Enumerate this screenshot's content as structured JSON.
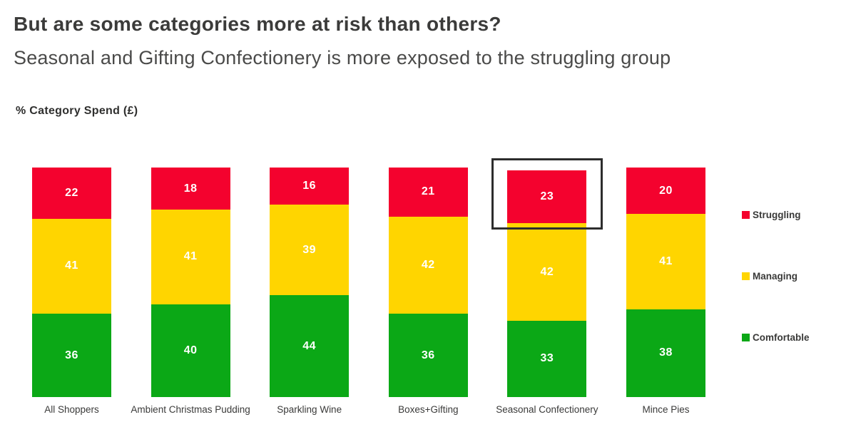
{
  "header": {
    "title": "But are some categories more at risk than others?",
    "subtitle": "Seasonal and Gifting Confectionery is more exposed to the struggling group"
  },
  "axis": {
    "y_label": "% Category Spend (£)"
  },
  "chart_data": {
    "type": "bar",
    "stacked": true,
    "title": "% Category Spend (£)",
    "xlabel": "",
    "ylabel": "% Category Spend (£)",
    "grid": false,
    "legend_position": "right",
    "categories": [
      "All Shoppers",
      "Ambient Christmas Pudding",
      "Sparkling Wine",
      "Boxes+Gifting",
      "Seasonal Confectionery",
      "Mince Pies"
    ],
    "series": [
      {
        "name": "Struggling",
        "color": "#F4022E",
        "values": [
          22,
          18,
          16,
          21,
          23,
          20
        ]
      },
      {
        "name": "Managing",
        "color": "#FFD500",
        "values": [
          41,
          41,
          39,
          42,
          42,
          41
        ]
      },
      {
        "name": "Comfortable",
        "color": "#0BA816",
        "values": [
          36,
          40,
          44,
          36,
          33,
          38
        ]
      }
    ],
    "annotations": [
      {
        "type": "highlight-box",
        "category": "Seasonal Confectionery",
        "segment": "Struggling",
        "border_color": "#2d2d2d"
      }
    ]
  },
  "colors": {
    "struggling": "#F4022E",
    "managing": "#FFD500",
    "comfortable": "#0BA816",
    "title_text": "#3b3b3a",
    "subtitle_text": "#4a4a49"
  }
}
